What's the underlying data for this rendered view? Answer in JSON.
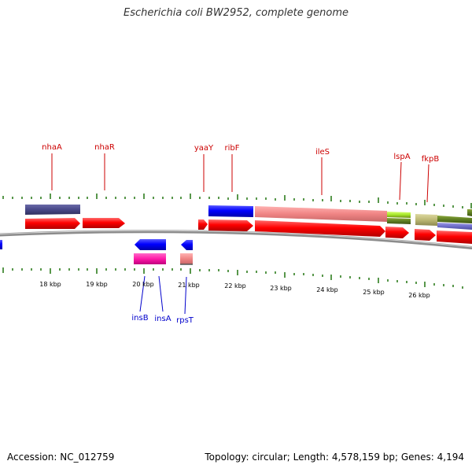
{
  "title": "Escherichia coli BW2952, complete genome",
  "footer": {
    "accession": "Accession: NC_012759",
    "summary": "Topology: circular; Length: 4,578,159 bp; Genes: 4,194"
  },
  "colors": {
    "forward_label": "#cc0000",
    "reverse_label": "#0000cc",
    "tick": "#2e7d1e",
    "backbone": "#888888"
  },
  "scale": {
    "unit": "kbp",
    "tick_labels": [
      "18 kbp",
      "19 kbp",
      "20 kbp",
      "21 kbp",
      "22 kbp",
      "23 kbp",
      "24 kbp",
      "25 kbp",
      "26 kbp"
    ]
  },
  "features": {
    "forward_labels": [
      "nhaA",
      "nhaR",
      "yaaY",
      "ribF",
      "ileS",
      "lspA",
      "fkpB"
    ],
    "reverse_labels": [
      "insB",
      "insA",
      "rpsT"
    ]
  }
}
